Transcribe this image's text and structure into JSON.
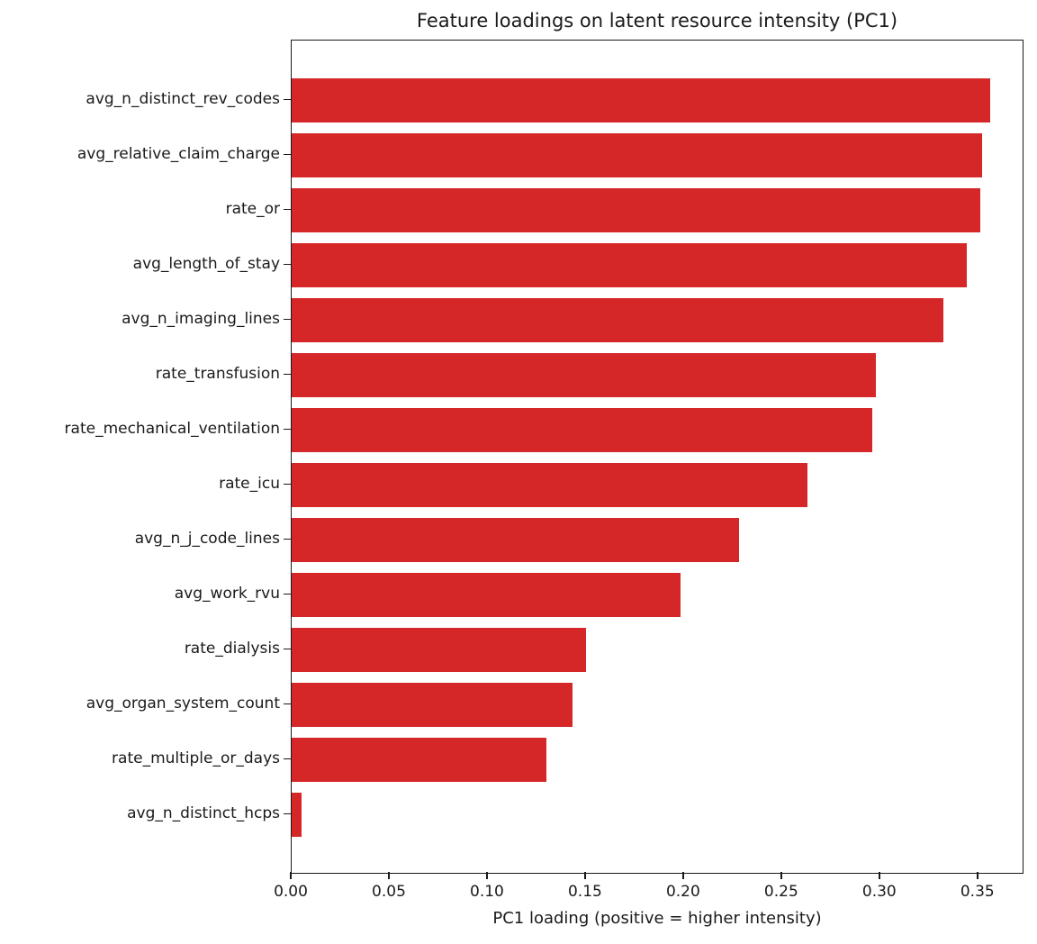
{
  "chart_data": {
    "type": "bar",
    "orientation": "horizontal",
    "title": "Feature loadings on latent resource intensity (PC1)",
    "xlabel": "PC1 loading (positive = higher intensity)",
    "ylabel": "",
    "categories": [
      "avg_n_distinct_rev_codes",
      "avg_relative_claim_charge",
      "rate_or",
      "avg_length_of_stay",
      "avg_n_imaging_lines",
      "rate_transfusion",
      "rate_mechanical_ventilation",
      "rate_icu",
      "avg_n_j_code_lines",
      "avg_work_rvu",
      "rate_dialysis",
      "avg_organ_system_count",
      "rate_multiple_or_days",
      "avg_n_distinct_hcps"
    ],
    "values": [
      0.356,
      0.352,
      0.351,
      0.344,
      0.332,
      0.298,
      0.296,
      0.263,
      0.228,
      0.198,
      0.15,
      0.143,
      0.13,
      0.005
    ],
    "xlim": [
      0,
      0.3735
    ],
    "xticks": [
      0.0,
      0.05,
      0.1,
      0.15,
      0.2,
      0.25,
      0.3,
      0.35
    ],
    "xtick_labels": [
      "0.00",
      "0.05",
      "0.10",
      "0.15",
      "0.20",
      "0.25",
      "0.30",
      "0.35"
    ],
    "grid": false,
    "legend": null,
    "bar_color": "#d62728",
    "spine_color": "#1a1a1a",
    "text_color": "#1a1a1a"
  }
}
